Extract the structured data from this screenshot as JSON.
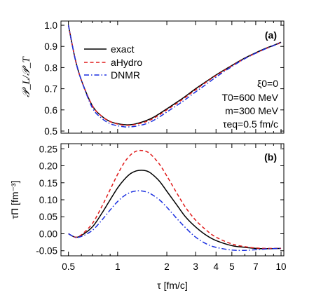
{
  "chart_data": [
    {
      "panel": "(a)",
      "type": "line",
      "ylabel": "𝒫_L/𝒫_T",
      "xscale": "log",
      "xlim": [
        0.45,
        10.4
      ],
      "ylim": [
        0.49,
        1.02
      ],
      "yticks": [
        "0.5",
        "0.6",
        "0.7",
        "0.8",
        "0.9",
        "1.0"
      ],
      "yticks_values": [
        0.5,
        0.6,
        0.7,
        0.8,
        0.9,
        1.0
      ],
      "grid": false,
      "legend_position": "top-left",
      "annotations": [
        "ξ0=0",
        "T0=600 MeV",
        "m=300 MeV",
        "τeq=0.5 fm/c"
      ],
      "series": [
        {
          "name": "exact",
          "color": "#000000",
          "dash": "solid",
          "x": [
            0.5,
            0.55,
            0.6,
            0.7,
            0.8,
            0.9,
            1.0,
            1.1,
            1.2,
            1.3,
            1.5,
            1.7,
            2.0,
            2.5,
            3.0,
            3.5,
            4.0,
            5.0,
            6.0,
            7.0,
            8.0,
            9.0,
            10.0
          ],
          "y": [
            1.0,
            0.84,
            0.74,
            0.62,
            0.57,
            0.545,
            0.535,
            0.53,
            0.53,
            0.535,
            0.55,
            0.57,
            0.605,
            0.655,
            0.7,
            0.735,
            0.765,
            0.81,
            0.845,
            0.87,
            0.89,
            0.905,
            0.92
          ]
        },
        {
          "name": "aHydro",
          "color": "#e01b1b",
          "dash": "dashed",
          "x": [
            0.5,
            0.55,
            0.6,
            0.7,
            0.8,
            0.9,
            1.0,
            1.1,
            1.2,
            1.3,
            1.5,
            1.7,
            2.0,
            2.5,
            3.0,
            3.5,
            4.0,
            5.0,
            6.0,
            7.0,
            8.0,
            9.0,
            10.0
          ],
          "y": [
            1.0,
            0.84,
            0.74,
            0.62,
            0.57,
            0.545,
            0.533,
            0.528,
            0.528,
            0.532,
            0.545,
            0.565,
            0.6,
            0.65,
            0.695,
            0.732,
            0.762,
            0.808,
            0.843,
            0.868,
            0.888,
            0.904,
            0.918
          ]
        },
        {
          "name": "DNMR",
          "color": "#1a2fe0",
          "dash": "dashdot",
          "x": [
            0.5,
            0.55,
            0.6,
            0.7,
            0.8,
            0.9,
            1.0,
            1.1,
            1.2,
            1.3,
            1.5,
            1.7,
            2.0,
            2.5,
            3.0,
            3.5,
            4.0,
            5.0,
            6.0,
            7.0,
            8.0,
            9.0,
            10.0
          ],
          "y": [
            1.0,
            0.84,
            0.74,
            0.61,
            0.56,
            0.535,
            0.525,
            0.52,
            0.52,
            0.523,
            0.535,
            0.555,
            0.59,
            0.64,
            0.685,
            0.722,
            0.755,
            0.805,
            0.842,
            0.868,
            0.888,
            0.904,
            0.918
          ]
        }
      ]
    },
    {
      "panel": "(b)",
      "type": "line",
      "ylabel": "τΠ [fm⁻³]",
      "xlabel": "τ [fm/c]",
      "xscale": "log",
      "xlim": [
        0.45,
        10.4
      ],
      "ylim": [
        -0.065,
        0.265
      ],
      "xticks": [
        "0.5",
        "1",
        "2",
        "3",
        "4",
        "5",
        "7",
        "10"
      ],
      "xticks_values": [
        0.5,
        1,
        2,
        3,
        4,
        5,
        7,
        10
      ],
      "yticks": [
        "-0.05",
        "0.00",
        "0.05",
        "0.10",
        "0.15",
        "0.20",
        "0.25"
      ],
      "yticks_values": [
        -0.05,
        0.0,
        0.05,
        0.1,
        0.15,
        0.2,
        0.25
      ],
      "grid": false,
      "series": [
        {
          "name": "exact",
          "color": "#000000",
          "dash": "solid",
          "x": [
            0.5,
            0.55,
            0.6,
            0.7,
            0.8,
            0.9,
            1.0,
            1.1,
            1.2,
            1.3,
            1.4,
            1.5,
            1.6,
            1.8,
            2.0,
            2.3,
            2.6,
            3.0,
            3.5,
            4.0,
            5.0,
            6.0,
            7.0,
            8.0,
            10.0
          ],
          "y": [
            0.0,
            -0.01,
            -0.005,
            0.02,
            0.06,
            0.1,
            0.135,
            0.16,
            0.177,
            0.185,
            0.187,
            0.185,
            0.178,
            0.155,
            0.125,
            0.085,
            0.05,
            0.02,
            -0.005,
            -0.02,
            -0.035,
            -0.04,
            -0.043,
            -0.044,
            -0.043
          ]
        },
        {
          "name": "aHydro",
          "color": "#e01b1b",
          "dash": "dashed",
          "x": [
            0.5,
            0.55,
            0.6,
            0.7,
            0.8,
            0.9,
            1.0,
            1.1,
            1.2,
            1.3,
            1.4,
            1.5,
            1.6,
            1.8,
            2.0,
            2.3,
            2.6,
            3.0,
            3.5,
            4.0,
            5.0,
            6.0,
            7.0,
            8.0,
            10.0
          ],
          "y": [
            0.0,
            -0.01,
            -0.003,
            0.03,
            0.08,
            0.13,
            0.175,
            0.21,
            0.232,
            0.243,
            0.245,
            0.242,
            0.233,
            0.205,
            0.17,
            0.12,
            0.078,
            0.04,
            0.01,
            -0.01,
            -0.03,
            -0.038,
            -0.042,
            -0.043,
            -0.043
          ]
        },
        {
          "name": "DNMR",
          "color": "#1a2fe0",
          "dash": "dashdot",
          "x": [
            0.5,
            0.55,
            0.6,
            0.7,
            0.8,
            0.9,
            1.0,
            1.1,
            1.2,
            1.3,
            1.4,
            1.5,
            1.6,
            1.8,
            2.0,
            2.3,
            2.6,
            3.0,
            3.5,
            4.0,
            5.0,
            6.0,
            7.0,
            8.0,
            10.0
          ],
          "y": [
            0.0,
            -0.01,
            -0.008,
            0.01,
            0.04,
            0.07,
            0.095,
            0.112,
            0.122,
            0.126,
            0.126,
            0.123,
            0.117,
            0.1,
            0.078,
            0.045,
            0.018,
            -0.01,
            -0.03,
            -0.04,
            -0.048,
            -0.049,
            -0.047,
            -0.045,
            -0.043
          ]
        }
      ]
    }
  ]
}
